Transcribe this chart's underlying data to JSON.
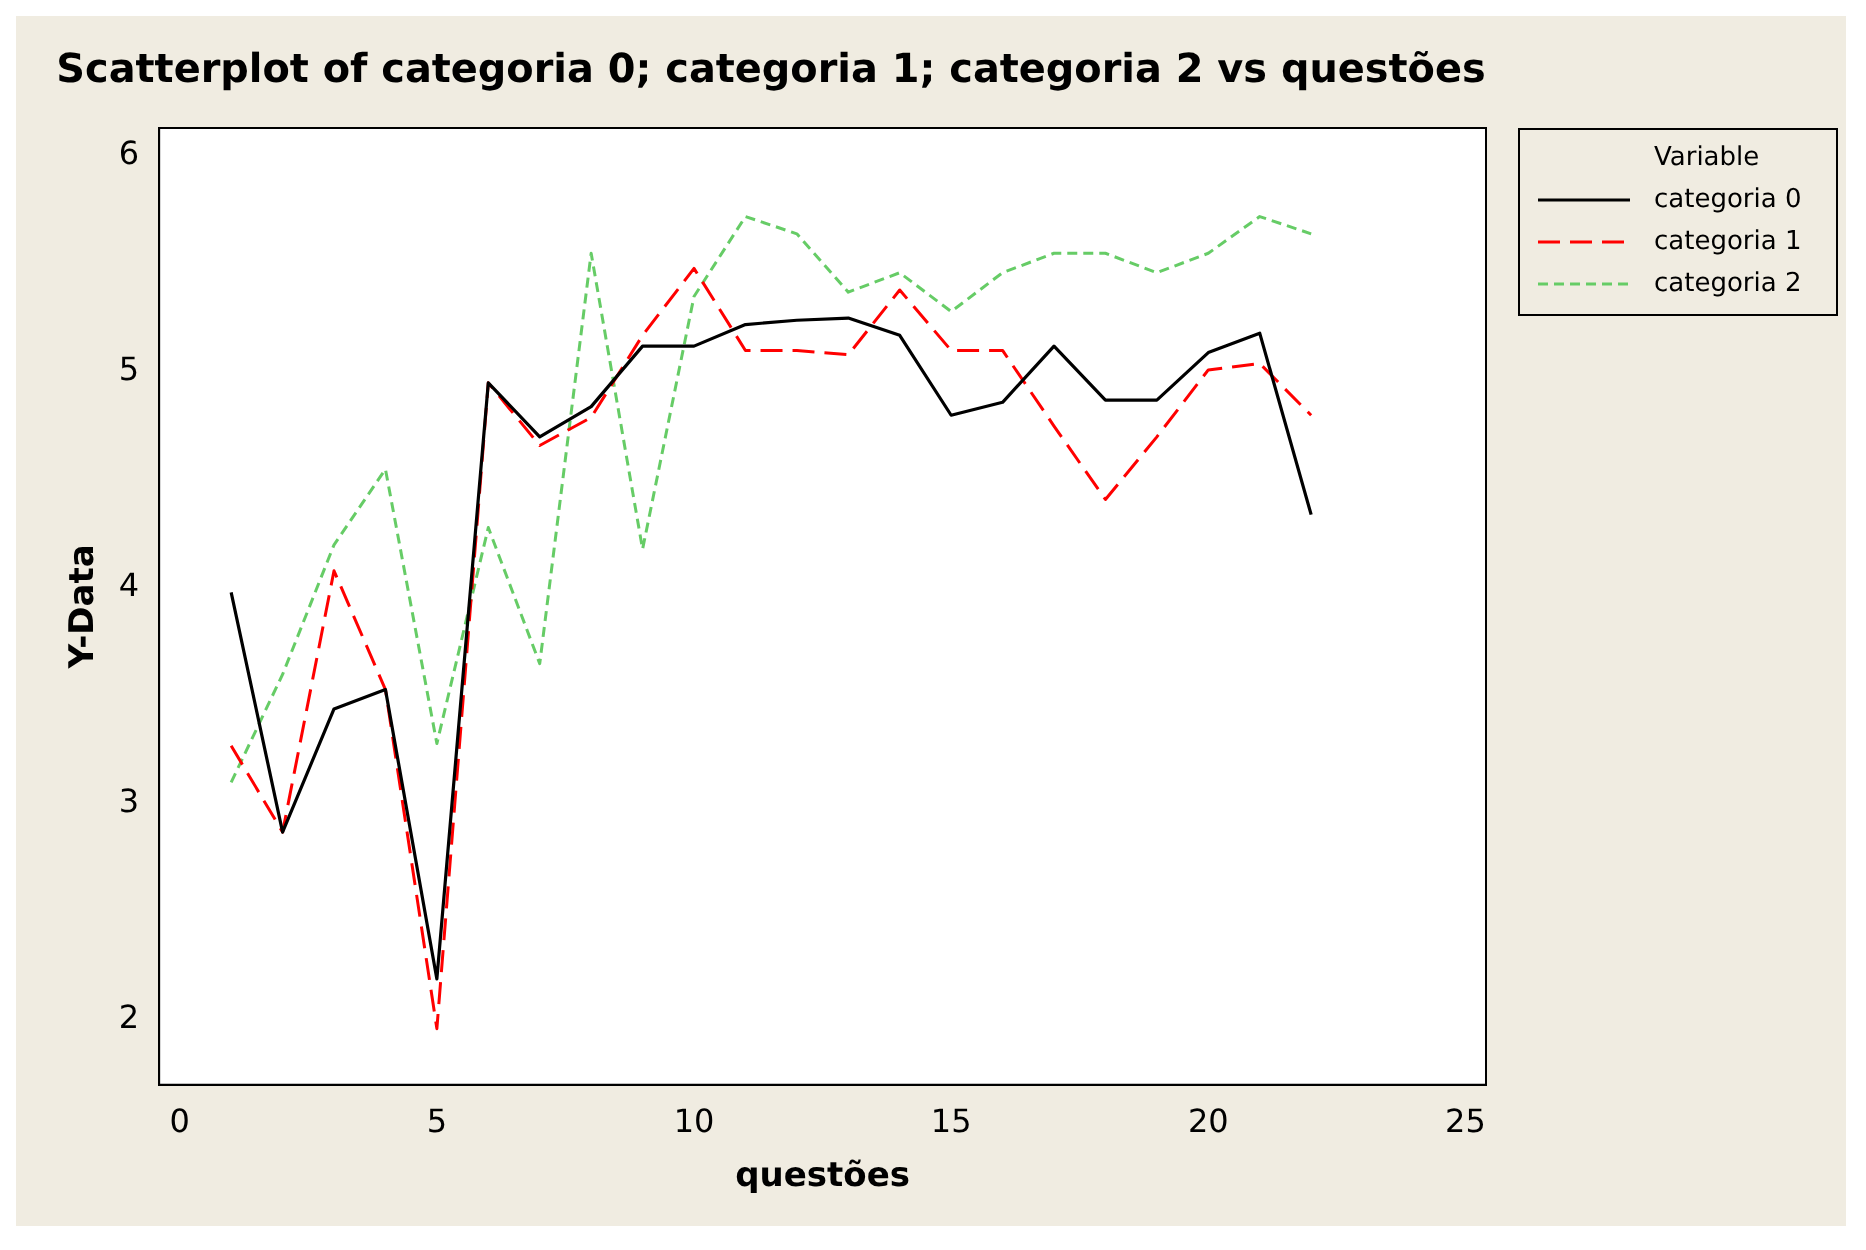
{
  "chart_data": {
    "type": "line",
    "title": "Scatterplot of categoria 0; categoria 1; categoria 2 vs questões",
    "xlabel": "questões",
    "ylabel": "Y-Data",
    "legend_title": "Variable",
    "x": [
      1,
      2,
      3,
      4,
      5,
      6,
      7,
      8,
      9,
      10,
      11,
      12,
      13,
      14,
      15,
      16,
      17,
      18,
      19,
      20,
      21,
      22
    ],
    "series": [
      {
        "name": "categoria 0",
        "color": "#000000",
        "line_style": "solid",
        "values": [
          3.98,
          2.87,
          3.44,
          3.53,
          2.19,
          4.95,
          4.7,
          4.84,
          5.12,
          5.12,
          5.22,
          5.24,
          5.25,
          5.17,
          4.8,
          4.86,
          5.12,
          4.87,
          4.87,
          5.09,
          5.18,
          4.34
        ]
      },
      {
        "name": "categoria 1",
        "color": "#ff0000",
        "line_style": "dashed",
        "values": [
          3.27,
          2.87,
          4.08,
          3.53,
          1.96,
          4.95,
          4.66,
          4.79,
          5.17,
          5.48,
          5.1,
          5.1,
          5.08,
          5.38,
          5.1,
          5.1,
          4.75,
          4.41,
          4.7,
          5.01,
          5.04,
          4.8
        ]
      },
      {
        "name": "categoria 2",
        "color": "#66cc66",
        "line_style": "dotted",
        "values": [
          3.1,
          3.6,
          4.2,
          4.55,
          3.28,
          4.28,
          3.65,
          5.55,
          4.18,
          5.35,
          5.72,
          5.64,
          5.37,
          5.46,
          5.28,
          5.46,
          5.55,
          5.55,
          5.46,
          5.55,
          5.72,
          5.64
        ]
      }
    ],
    "xlim": [
      -0.4,
      25.4
    ],
    "xticks": [
      0,
      5,
      10,
      15,
      20,
      25
    ],
    "ylim": [
      1.7,
      6.13
    ],
    "yticks": [
      2,
      3,
      4,
      5,
      6
    ],
    "grid": false,
    "legend": "top right",
    "marker": "none"
  }
}
